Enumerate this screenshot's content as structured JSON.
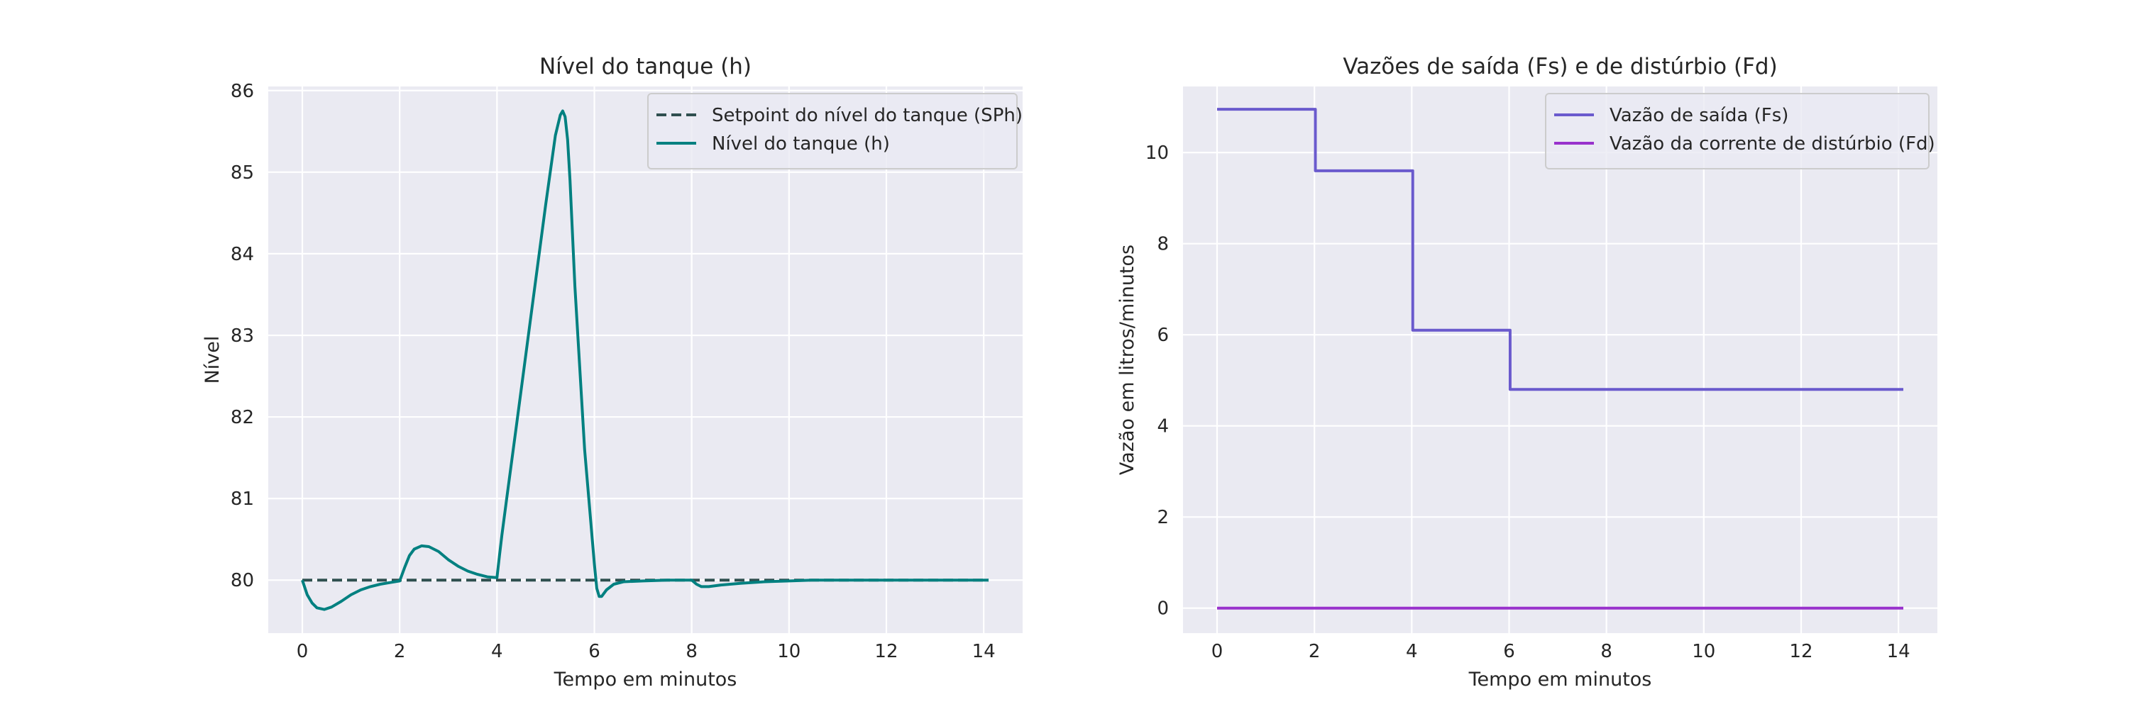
{
  "chart_data": [
    {
      "type": "line",
      "title": "Nível do tanque (h)",
      "xlabel": "Tempo em minutos",
      "ylabel": "Nível",
      "xlim": [
        -0.7,
        14.8
      ],
      "ylim": [
        79.35,
        86.05
      ],
      "xticks": [
        0,
        2,
        4,
        6,
        8,
        10,
        12,
        14
      ],
      "yticks": [
        80,
        81,
        82,
        83,
        84,
        85,
        86
      ],
      "grid": true,
      "legend_position": "upper right",
      "series": [
        {
          "name": "Setpoint do nível do tanque (SPh)",
          "style": "dashed",
          "color": "#2f4f4f",
          "x": [
            0,
            14.1
          ],
          "y": [
            80,
            80
          ]
        },
        {
          "name": "Nível do tanque (h)",
          "style": "solid",
          "color": "#008080",
          "x": [
            0,
            0.1,
            0.2,
            0.3,
            0.45,
            0.6,
            0.8,
            1.0,
            1.2,
            1.4,
            1.6,
            1.8,
            2.0,
            2.1,
            2.2,
            2.3,
            2.45,
            2.6,
            2.8,
            3.0,
            3.2,
            3.4,
            3.6,
            3.8,
            4.0,
            4.05,
            4.1,
            4.2,
            4.4,
            4.6,
            4.8,
            5.0,
            5.2,
            5.3,
            5.35,
            5.4,
            5.45,
            5.5,
            5.6,
            5.8,
            6.0,
            6.05,
            6.1,
            6.15,
            6.25,
            6.4,
            6.6,
            7.0,
            7.5,
            8.0,
            8.1,
            8.2,
            8.35,
            8.6,
            9.0,
            9.5,
            10.0,
            10.5,
            11.0,
            12.0,
            13.0,
            14.1
          ],
          "y": [
            80.0,
            79.82,
            79.72,
            79.66,
            79.64,
            79.67,
            79.74,
            79.82,
            79.88,
            79.92,
            79.95,
            79.97,
            79.99,
            80.15,
            80.3,
            80.38,
            80.42,
            80.41,
            80.35,
            80.25,
            80.17,
            80.11,
            80.07,
            80.04,
            80.03,
            80.3,
            80.55,
            81.0,
            81.9,
            82.8,
            83.7,
            84.6,
            85.45,
            85.7,
            85.75,
            85.68,
            85.4,
            84.9,
            83.6,
            81.6,
            80.2,
            79.9,
            79.8,
            79.8,
            79.88,
            79.95,
            79.98,
            79.99,
            80.0,
            80.0,
            79.95,
            79.92,
            79.92,
            79.94,
            79.96,
            79.98,
            79.99,
            80.0,
            80.0,
            80.0,
            80.0,
            80.0
          ]
        }
      ]
    },
    {
      "type": "line",
      "title": "Vazões de saída (Fs) e de distúrbio (Fd)",
      "xlabel": "Tempo em minutos",
      "ylabel": "Vazão em litros/minutos",
      "xlim": [
        -0.7,
        14.8
      ],
      "ylim": [
        -0.55,
        11.45
      ],
      "xticks": [
        0,
        2,
        4,
        6,
        8,
        10,
        12,
        14
      ],
      "yticks": [
        0,
        2,
        4,
        6,
        8,
        10
      ],
      "grid": true,
      "legend_position": "upper right",
      "series": [
        {
          "name": "Vazão de saída (Fs)",
          "style": "solid",
          "color": "#6a5acd",
          "x": [
            0,
            2.02,
            2.02,
            4.02,
            4.02,
            6.02,
            6.02,
            14.1
          ],
          "y": [
            10.95,
            10.95,
            9.6,
            9.6,
            6.1,
            6.1,
            4.8,
            4.8
          ]
        },
        {
          "name": "Vazão da corrente de distúrbio (Fd)",
          "style": "solid",
          "color": "#9932cc",
          "x": [
            0,
            14.1
          ],
          "y": [
            0,
            0
          ]
        }
      ]
    }
  ]
}
